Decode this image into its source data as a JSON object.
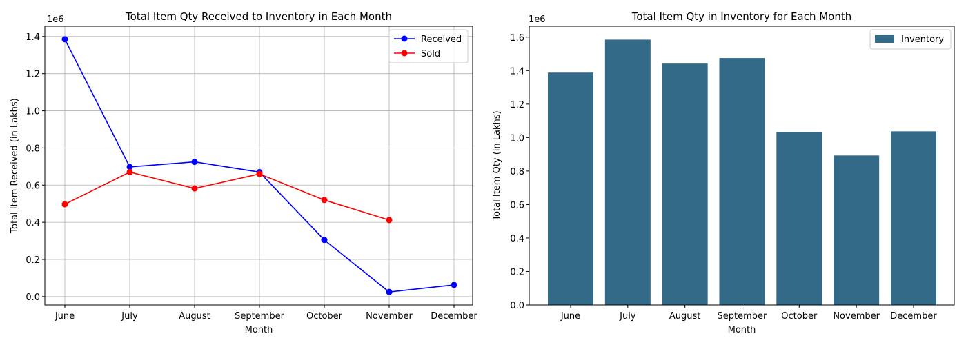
{
  "chart_data": [
    {
      "type": "line",
      "title": "Total Item Qty Received to Inventory in Each Month",
      "xlabel": "Month",
      "ylabel": "Total Item Received (in Lakhs)",
      "y_offset_label": "1e6",
      "categories": [
        "June",
        "July",
        "August",
        "September",
        "October",
        "November",
        "December"
      ],
      "ylim": [
        -0.045,
        1.455
      ],
      "yticks": [
        0.0,
        0.2,
        0.4,
        0.6,
        0.8,
        1.0,
        1.2,
        1.4
      ],
      "ytick_labels": [
        "0.0",
        "0.2",
        "0.4",
        "0.6",
        "0.8",
        "1.0",
        "1.2",
        "1.4"
      ],
      "grid": true,
      "legend": "top-right",
      "series": [
        {
          "name": "Received",
          "color": "#0000ff",
          "values": [
            1.385,
            0.698,
            0.725,
            0.67,
            0.305,
            0.025,
            0.063
          ]
        },
        {
          "name": "Sold",
          "color": "#ff0000",
          "values": [
            0.497,
            0.67,
            0.582,
            0.66,
            0.52,
            0.412,
            null
          ]
        }
      ]
    },
    {
      "type": "bar",
      "title": "Total Item Qty in Inventory for Each Month",
      "xlabel": "Month",
      "ylabel": "Total Item Qty (in Lakhs)",
      "y_offset_label": "1e6",
      "categories": [
        "June",
        "July",
        "August",
        "September",
        "October",
        "November",
        "December"
      ],
      "ylim": [
        0,
        1.665
      ],
      "yticks": [
        0.0,
        0.2,
        0.4,
        0.6,
        0.8,
        1.0,
        1.2,
        1.4,
        1.6
      ],
      "ytick_labels": [
        "0.0",
        "0.2",
        "0.4",
        "0.6",
        "0.8",
        "1.0",
        "1.2",
        "1.4",
        "1.6"
      ],
      "grid": false,
      "legend": "top-right",
      "series": [
        {
          "name": "Inventory",
          "color": "#336a87",
          "values": [
            1.388,
            1.585,
            1.442,
            1.475,
            1.032,
            0.893,
            1.037
          ]
        }
      ]
    }
  ]
}
